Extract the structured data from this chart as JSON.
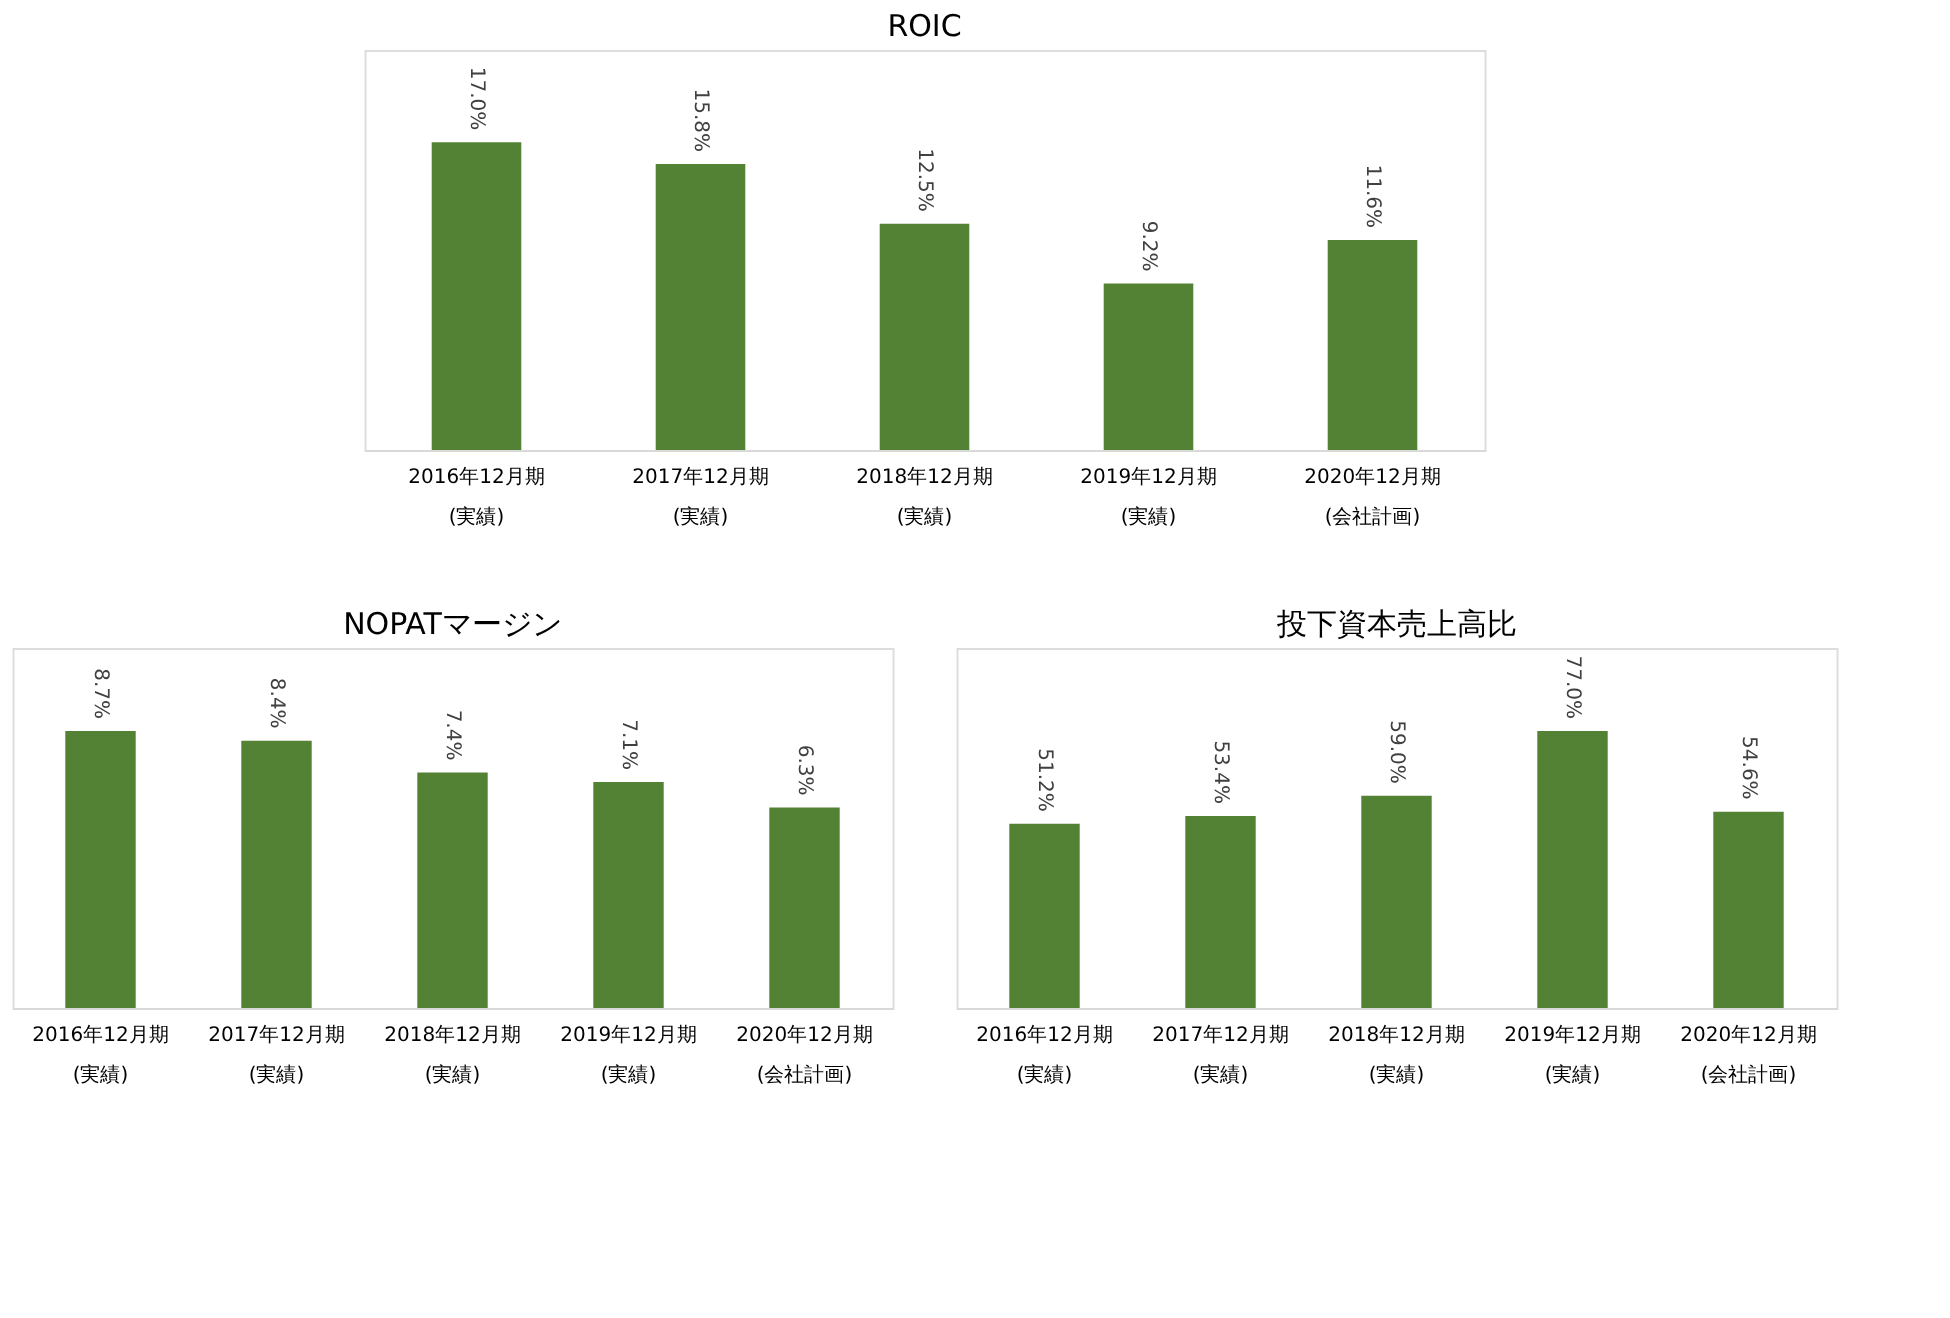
{
  "chart_data": [
    {
      "type": "bar",
      "title": "ROIC",
      "categories": [
        "2016年12月期\n(実績)",
        "2017年12月期\n(実績)",
        "2018年12月期\n(実績)",
        "2019年12月期\n(実績)",
        "2020年12月期\n(会社計画)"
      ],
      "values": [
        17.0,
        15.8,
        12.5,
        9.2,
        11.6
      ],
      "color": "#548235",
      "value_labels": [
        "17.0%",
        "15.8%",
        "12.5%",
        "9.2%",
        "11.6%"
      ],
      "grid": false
    },
    {
      "type": "bar",
      "title": "NOPATマージン",
      "categories": [
        "2016年12月期\n(実績)",
        "2017年12月期\n(実績)",
        "2018年12月期\n(実績)",
        "2019年12月期\n(実績)",
        "2020年12月期\n(会社計画)"
      ],
      "values": [
        8.7,
        8.4,
        7.4,
        7.1,
        6.3
      ],
      "color": "#548235",
      "value_labels": [
        "8.7%",
        "8.4%",
        "7.4%",
        "7.1%",
        "6.3%"
      ],
      "grid": false
    },
    {
      "type": "bar",
      "title": "投下資本売上高比",
      "categories": [
        "2016年12月期\n(実績)",
        "2017年12月期\n(実績)",
        "2018年12月期\n(実績)",
        "2019年12月期\n(実績)",
        "2020年12月期\n(会社計画)"
      ],
      "values": [
        51.2,
        53.4,
        59.0,
        77.0,
        54.6
      ],
      "color": "#548235",
      "value_labels": [
        "51.2%",
        "53.4%",
        "59.0%",
        "77.0%",
        "54.6%"
      ],
      "grid": false
    }
  ]
}
